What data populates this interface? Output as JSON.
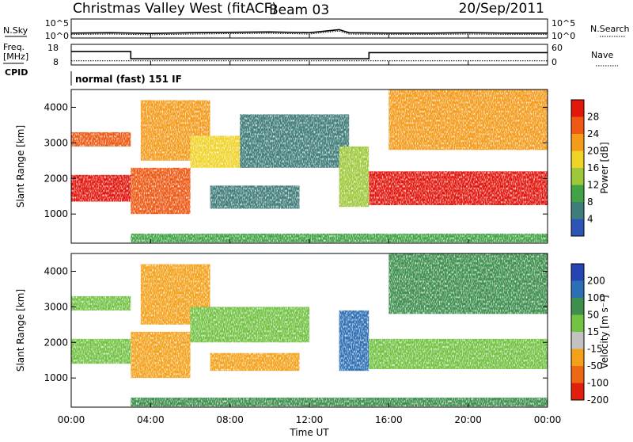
{
  "header": {
    "station": "Christmas Valley West (fitACF)",
    "beam": "Beam 03",
    "date": "20/Sep/2011",
    "cpid": "normal (fast) 151 IF"
  },
  "labels": {
    "nsky": "N.Sky",
    "nsearch": "N.Search",
    "freq": "Freq.",
    "mhz": "[MHz]",
    "nave": "Nave",
    "cpid_label": "CPID",
    "nsky_tick_hi": "10^5",
    "nsky_tick_lo": "10^0",
    "freq_tick_hi": "18",
    "freq_tick_lo": "8",
    "nave_tick_hi": "60",
    "nave_tick_lo": "0"
  },
  "chart_data": [
    {
      "type": "line",
      "panel": "noise",
      "series": [
        {
          "name": "N.Sky"
        },
        {
          "name": "N.Search"
        }
      ],
      "ylim": [
        1,
        100000
      ],
      "yscale": "log",
      "yticks": [
        "10^0",
        "10^5"
      ],
      "x": [
        0,
        2,
        4,
        6,
        8,
        10,
        12,
        13.5,
        14,
        16,
        18,
        20,
        22,
        24
      ],
      "values_log10": [
        1.3,
        1.4,
        1.2,
        1.4,
        1.5,
        1.6,
        1.4,
        2.2,
        1.4,
        1.3,
        1.3,
        1.4,
        1.3,
        1.3
      ]
    },
    {
      "type": "line",
      "panel": "frequency",
      "series": [
        {
          "name": "Freq.",
          "points": [
            [
              0,
              14.5
            ],
            [
              3.0,
              14.5
            ],
            [
              3.0,
              11
            ],
            [
              15.0,
              11
            ],
            [
              15.0,
              14
            ],
            [
              24,
              14
            ]
          ]
        },
        {
          "name": "Nave",
          "points": [
            [
              0,
              12
            ],
            [
              24,
              12
            ]
          ]
        }
      ],
      "ylim_freq": [
        8,
        18
      ],
      "ylim_nave": [
        0,
        60
      ],
      "yticks_freq": [
        8,
        18
      ],
      "yticks_nave": [
        0,
        60
      ]
    },
    {
      "type": "heatmap",
      "panel": "power",
      "xlabel": "",
      "ylabel": "Slant Range [km]",
      "xlim": [
        0,
        24
      ],
      "ylim": [
        180,
        4500
      ],
      "yticks": [
        1000,
        2000,
        3000,
        4000
      ],
      "colorbar_label": "Power [dB]",
      "colorbar_ticks": [
        4,
        8,
        12,
        16,
        20,
        24,
        28
      ],
      "colorbar_range": [
        0,
        32
      ],
      "colors": [
        "#1a1ad4",
        "#2d55b8",
        "#3f7d7a",
        "#42a346",
        "#9ec83a",
        "#f0d327",
        "#f49b1a",
        "#ee5812",
        "#e3160c"
      ],
      "regions": [
        {
          "x": [
            0,
            3
          ],
          "y": [
            1350,
            2100
          ],
          "v": 29
        },
        {
          "x": [
            0,
            3
          ],
          "y": [
            2900,
            3300
          ],
          "v": 27
        },
        {
          "x": [
            3,
            6
          ],
          "y": [
            1000,
            2300
          ],
          "v": 27
        },
        {
          "x": [
            3.5,
            7
          ],
          "y": [
            2500,
            4200
          ],
          "v": 23
        },
        {
          "x": [
            6,
            10
          ],
          "y": [
            2300,
            3200
          ],
          "v": 21
        },
        {
          "x": [
            8.5,
            14
          ],
          "y": [
            2300,
            3800
          ],
          "v": 9
        },
        {
          "x": [
            7,
            11.5
          ],
          "y": [
            1150,
            1800
          ],
          "v": 8
        },
        {
          "x": [
            13.5,
            15
          ],
          "y": [
            1200,
            2900
          ],
          "v": 17
        },
        {
          "x": [
            15,
            24
          ],
          "y": [
            1250,
            2200
          ],
          "v": 30
        },
        {
          "x": [
            16,
            24
          ],
          "y": [
            2800,
            4500
          ],
          "v": 24
        },
        {
          "x": [
            3,
            24
          ],
          "y": [
            200,
            450
          ],
          "v": 11
        }
      ]
    },
    {
      "type": "heatmap",
      "panel": "velocity",
      "xlabel": "Time UT",
      "ylabel": "Slant Range [km]",
      "xlim": [
        0,
        24
      ],
      "ylim": [
        180,
        4500
      ],
      "xticks": [
        "00:00",
        "04:00",
        "08:00",
        "12:00",
        "16:00",
        "20:00",
        "00:00"
      ],
      "yticks": [
        1000,
        2000,
        3000,
        4000
      ],
      "colorbar_label": "Velocity [m s⁻¹]",
      "colorbar_ticks": [
        200,
        100,
        50,
        15,
        -15,
        -50,
        -100,
        -200
      ],
      "colors": [
        "#2545b5",
        "#2d6fb4",
        "#3e8f4e",
        "#72c243",
        "#c2c2c2",
        "#f4a11a",
        "#ee6711",
        "#e21f0d"
      ],
      "regions": [
        {
          "x": [
            0,
            3
          ],
          "y": [
            1400,
            2100
          ],
          "v": 0
        },
        {
          "x": [
            0,
            3
          ],
          "y": [
            2900,
            3300
          ],
          "v": 0
        },
        {
          "x": [
            3,
            6
          ],
          "y": [
            1000,
            2300
          ],
          "v": -60
        },
        {
          "x": [
            3.5,
            7
          ],
          "y": [
            2500,
            4200
          ],
          "v": -60
        },
        {
          "x": [
            6,
            12
          ],
          "y": [
            2000,
            3000
          ],
          "v": 0
        },
        {
          "x": [
            7,
            11.5
          ],
          "y": [
            1200,
            1700
          ],
          "v": -60
        },
        {
          "x": [
            13.5,
            15
          ],
          "y": [
            1200,
            2900
          ],
          "v": 60
        },
        {
          "x": [
            15,
            24
          ],
          "y": [
            1250,
            2100
          ],
          "v": 0
        },
        {
          "x": [
            16,
            24
          ],
          "y": [
            2800,
            4500
          ],
          "v": 40
        },
        {
          "x": [
            3,
            24
          ],
          "y": [
            200,
            450
          ],
          "v": 40
        }
      ]
    }
  ]
}
